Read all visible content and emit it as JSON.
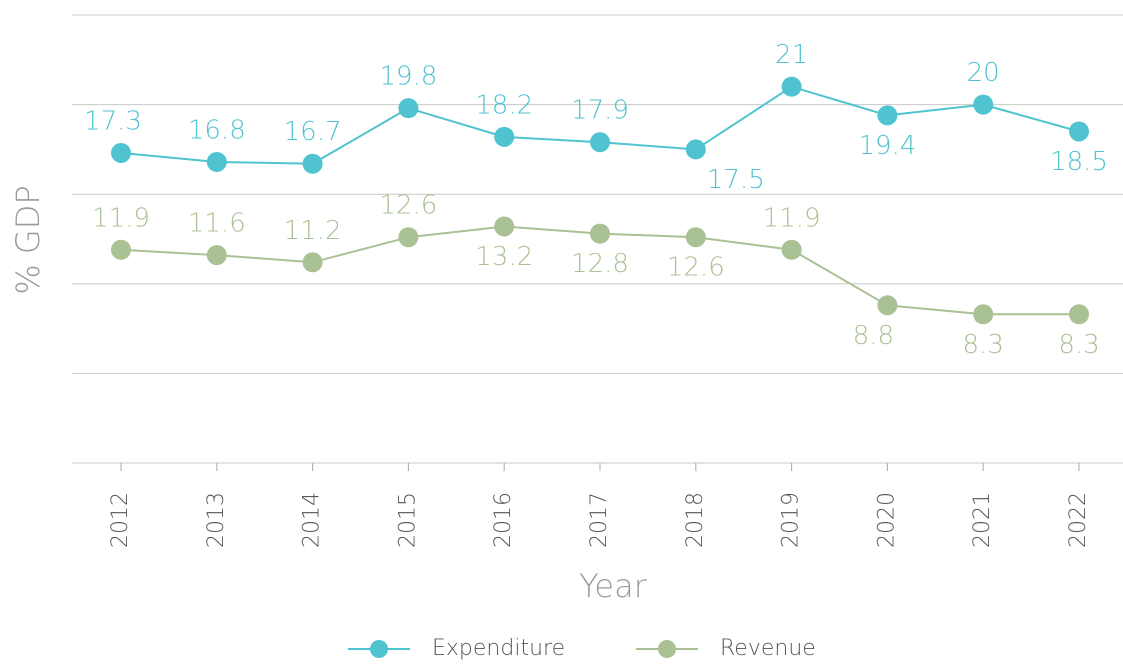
{
  "chart_data": {
    "type": "line",
    "x_label": "Year",
    "y_label": "% GDP",
    "categories": [
      "2012",
      "2013",
      "2014",
      "2015",
      "2016",
      "2017",
      "2018",
      "2019",
      "2020",
      "2021",
      "2022"
    ],
    "series": [
      {
        "name": "Expenditure",
        "color": "#4fc3cf",
        "values": [
          17.3,
          16.8,
          16.7,
          19.8,
          18.2,
          17.9,
          17.5,
          21,
          19.4,
          20,
          18.5
        ]
      },
      {
        "name": "Revenue",
        "color": "#a9c194",
        "values": [
          11.9,
          11.6,
          11.2,
          12.6,
          13.2,
          12.8,
          12.6,
          11.9,
          8.8,
          8.3,
          8.3
        ]
      }
    ],
    "ylim": [
      0,
      25
    ],
    "yticks": [
      0,
      5,
      10,
      15,
      20,
      25
    ],
    "show_ytick_labels": false,
    "grid": true,
    "legend": "bottom"
  }
}
